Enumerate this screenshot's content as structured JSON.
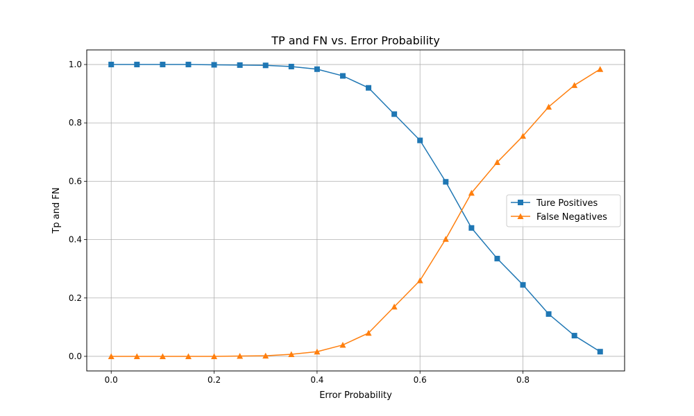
{
  "chart_data": {
    "type": "line",
    "title": "TP and FN vs. Error Probability",
    "xlabel": "Error Probability",
    "ylabel": "Tp and FN",
    "xlim": [
      -0.0475,
      0.9975
    ],
    "ylim": [
      -0.05,
      1.05
    ],
    "xticks": [
      0.0,
      0.2,
      0.4,
      0.6,
      0.8
    ],
    "xtick_labels": [
      "0.0",
      "0.2",
      "0.4",
      "0.6",
      "0.8"
    ],
    "yticks": [
      0.0,
      0.2,
      0.4,
      0.6,
      0.8,
      1.0
    ],
    "ytick_labels": [
      "0.0",
      "0.2",
      "0.4",
      "0.6",
      "0.8",
      "1.0"
    ],
    "grid": true,
    "legend_position": "center-right",
    "x": [
      0.0,
      0.05,
      0.1,
      0.15,
      0.2,
      0.25,
      0.3,
      0.35,
      0.4,
      0.45,
      0.5,
      0.55,
      0.6,
      0.65,
      0.7,
      0.75,
      0.8,
      0.85,
      0.9,
      0.95
    ],
    "series": [
      {
        "name": "Ture Positives",
        "color": "#1f77b4",
        "marker": "square",
        "values": [
          1.0,
          1.0,
          1.0,
          1.0,
          0.999,
          0.998,
          0.997,
          0.993,
          0.984,
          0.961,
          0.92,
          0.83,
          0.74,
          0.598,
          0.44,
          0.335,
          0.245,
          0.145,
          0.071,
          0.016
        ]
      },
      {
        "name": "False Negatives",
        "color": "#ff7f0e",
        "marker": "triangle",
        "values": [
          0.0,
          0.0,
          0.0,
          0.0,
          0.0,
          0.001,
          0.002,
          0.007,
          0.016,
          0.039,
          0.08,
          0.17,
          0.26,
          0.402,
          0.56,
          0.665,
          0.755,
          0.855,
          0.929,
          0.984
        ]
      }
    ]
  }
}
